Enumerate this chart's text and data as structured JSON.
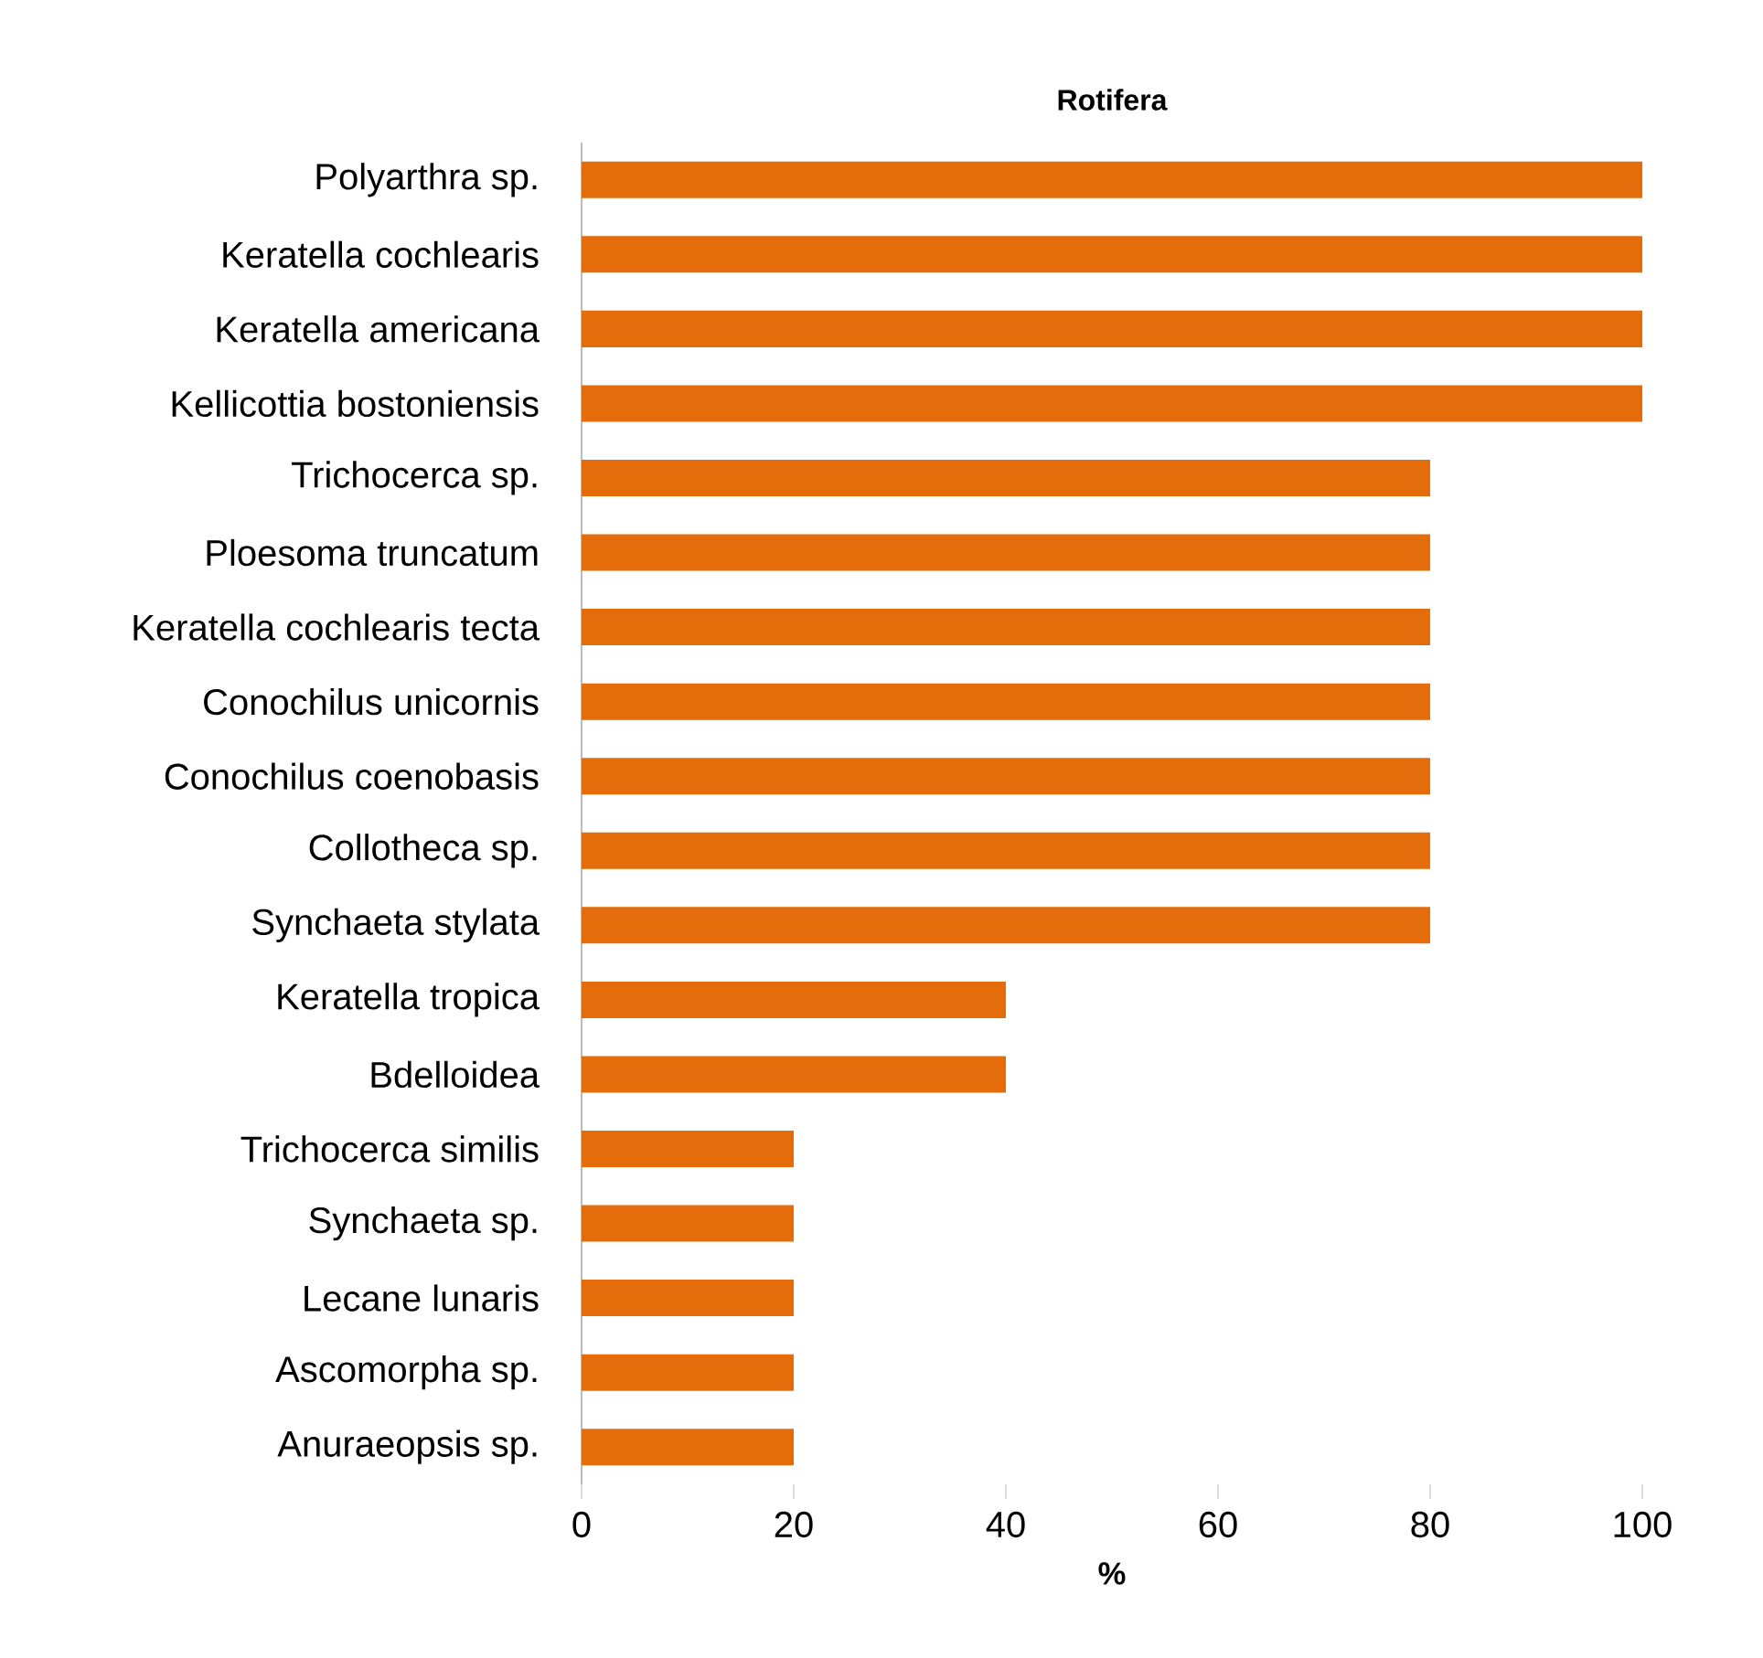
{
  "chart_data": {
    "type": "bar",
    "orientation": "horizontal",
    "title": "Rotifera",
    "xlabel": "%",
    "categories": [
      "Polyarthra sp.",
      "Keratella cochlearis",
      "Keratella americana",
      "Kellicottia bostoniensis",
      "Trichocerca sp.",
      "Ploesoma truncatum",
      "Keratella cochlearis tecta",
      "Conochilus unicornis",
      "Conochilus coenobasis",
      "Collotheca sp.",
      "Synchaeta stylata",
      "Keratella tropica",
      "Bdelloidea",
      "Trichocerca similis",
      "Synchaeta sp.",
      "Lecane lunaris",
      "Ascomorpha sp.",
      "Anuraeopsis sp."
    ],
    "values": [
      100,
      100,
      100,
      100,
      80,
      80,
      80,
      80,
      80,
      80,
      80,
      40,
      40,
      20,
      20,
      20,
      20,
      20
    ],
    "color": "#e46c0a",
    "xlim": [
      0,
      100
    ],
    "xticks": [
      0,
      20,
      40,
      60,
      80,
      100
    ]
  }
}
